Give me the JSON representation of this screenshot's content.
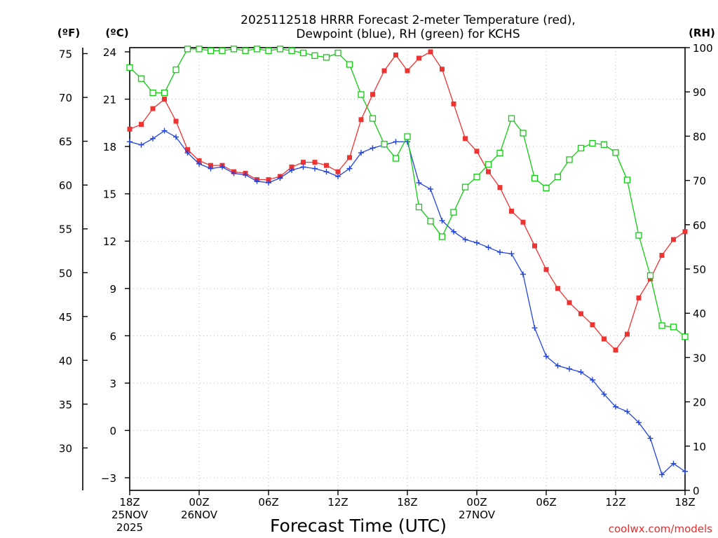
{
  "chart_data": {
    "type": "line",
    "title_line1": "2025112518 HRRR Forecast 2-meter Temperature (red),",
    "title_line2": "Dewpoint (blue), RH (green) for KCHS",
    "xlabel": "Forecast Time (UTC)",
    "footer": "coolwx.com/models",
    "unit_f": "(ºF)",
    "unit_c": "(ºC)",
    "unit_rh": "(RH)",
    "x_range_hours": [
      0,
      48
    ],
    "celsius_axis": {
      "min": -4.2,
      "max": 24.3,
      "ticks": [
        24,
        21,
        18,
        15,
        12,
        9,
        6,
        3,
        0,
        -3
      ],
      "labels": [
        "24",
        "21",
        "18",
        "15",
        "12",
        "9",
        "6",
        "3",
        "0",
        "−3"
      ]
    },
    "fahrenheit_axis": {
      "ticks": [
        75,
        70,
        65,
        60,
        55,
        50,
        45,
        40,
        35,
        30
      ],
      "labels": [
        "75",
        "70",
        "65",
        "60",
        "55",
        "50",
        "45",
        "40",
        "35",
        "30"
      ]
    },
    "rh_axis": {
      "min": 0,
      "max": 100,
      "ticks": [
        0,
        10,
        20,
        30,
        40,
        50,
        60,
        70,
        80,
        90,
        100
      ],
      "labels": [
        "0",
        "10",
        "20",
        "30",
        "40",
        "50",
        "60",
        "70",
        "80",
        "90",
        "100"
      ]
    },
    "x_ticks": [
      {
        "hour": 0,
        "lines": [
          "18Z",
          "25NOV",
          "2025"
        ]
      },
      {
        "hour": 6,
        "lines": [
          "00Z",
          "26NOV"
        ]
      },
      {
        "hour": 12,
        "lines": [
          "06Z"
        ]
      },
      {
        "hour": 18,
        "lines": [
          "12Z"
        ]
      },
      {
        "hour": 24,
        "lines": [
          "18Z"
        ]
      },
      {
        "hour": 30,
        "lines": [
          "00Z",
          "27NOV"
        ]
      },
      {
        "hour": 36,
        "lines": [
          "06Z"
        ]
      },
      {
        "hour": 42,
        "lines": [
          "12Z"
        ]
      },
      {
        "hour": 48,
        "lines": [
          "18Z"
        ]
      }
    ],
    "series": [
      {
        "name": "Temperature",
        "unit": "C",
        "axis": "celsius",
        "color": "#ee3333",
        "marker": "filled-square",
        "values": [
          19.1,
          19.4,
          20.4,
          21.0,
          19.6,
          17.8,
          17.1,
          16.8,
          16.8,
          16.4,
          16.3,
          15.9,
          15.9,
          16.1,
          16.7,
          17.0,
          17.0,
          16.8,
          16.4,
          17.3,
          19.7,
          21.3,
          22.8,
          23.8,
          22.8,
          23.6,
          24.0,
          22.9,
          20.7,
          18.5,
          17.7,
          16.4,
          15.4,
          13.9,
          13.2,
          11.7,
          10.2,
          9.0,
          8.1,
          7.4,
          6.7,
          5.8,
          5.1,
          6.1,
          8.4,
          9.6,
          11.1,
          12.1,
          12.6
        ]
      },
      {
        "name": "Dewpoint",
        "unit": "C",
        "axis": "celsius",
        "color": "#2244dd",
        "marker": "plus",
        "values": [
          18.3,
          18.1,
          18.5,
          19.0,
          18.6,
          17.6,
          16.9,
          16.6,
          16.7,
          16.3,
          16.2,
          15.8,
          15.7,
          16.0,
          16.5,
          16.7,
          16.6,
          16.4,
          16.1,
          16.6,
          17.6,
          17.9,
          18.1,
          18.3,
          18.3,
          15.7,
          15.3,
          13.3,
          12.6,
          12.1,
          11.9,
          11.6,
          11.3,
          11.2,
          9.9,
          6.5,
          4.7,
          4.1,
          3.9,
          3.7,
          3.2,
          2.3,
          1.5,
          1.2,
          0.5,
          -0.5,
          -2.8,
          -2.1,
          -2.6
        ]
      },
      {
        "name": "RH",
        "unit": "%",
        "axis": "rh",
        "color": "#11cc11",
        "marker": "open-square",
        "values": [
          95.5,
          93.0,
          89.8,
          89.8,
          95.0,
          99.7,
          99.7,
          99.3,
          99.3,
          99.7,
          99.3,
          99.7,
          99.3,
          99.7,
          99.3,
          98.8,
          98.2,
          97.8,
          98.8,
          96.2,
          89.4,
          84.0,
          78.2,
          75.0,
          79.9,
          64.0,
          60.8,
          57.3,
          62.8,
          68.5,
          70.8,
          73.6,
          76.2,
          84.0,
          80.7,
          70.5,
          68.3,
          70.8,
          74.7,
          77.3,
          78.4,
          78.1,
          76.3,
          70.1,
          57.6,
          48.5,
          37.2,
          36.9,
          34.7
        ]
      }
    ]
  }
}
